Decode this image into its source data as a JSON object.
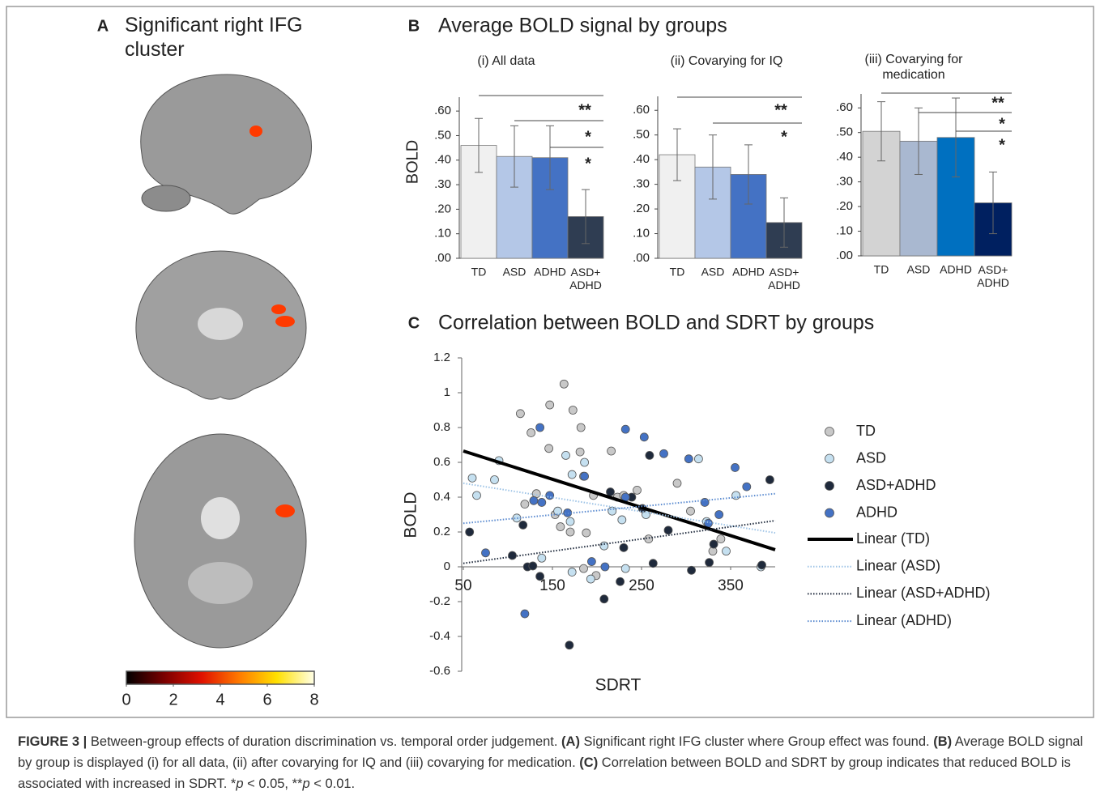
{
  "panels": {
    "A": {
      "label": "A",
      "title": "Significant right IFG cluster"
    },
    "B": {
      "label": "B",
      "title": "Average BOLD signal by groups"
    },
    "C": {
      "label": "C",
      "title": "Correlation between BOLD and SDRT by groups"
    }
  },
  "chart_data": [
    {
      "type": "colorbar",
      "xlim": [
        0,
        8
      ],
      "xticks": [
        0,
        2,
        4,
        6,
        8
      ],
      "colors": [
        "#000000",
        "#7a0000",
        "#e01000",
        "#ff7a00",
        "#ffe000",
        "#ffffe8"
      ]
    },
    {
      "type": "bar",
      "title": "(i) All data",
      "ylabel": "BOLD",
      "categories": [
        "TD",
        "ASD",
        "ADHD",
        "ASD+ ADHD"
      ],
      "values": [
        0.46,
        0.415,
        0.41,
        0.17
      ],
      "errors": [
        0.11,
        0.125,
        0.13,
        0.11
      ],
      "colors": [
        "#f0f0f0",
        "#b4c7e7",
        "#4472c4",
        "#2f3d52"
      ],
      "ylim": [
        0,
        0.65
      ],
      "yticks": [
        {
          "value": 0,
          "label": ".00"
        },
        {
          "value": 0.1,
          "label": ".10"
        },
        {
          "value": 0.2,
          "label": ".20"
        },
        {
          "value": 0.3,
          "label": ".30"
        },
        {
          "value": 0.4,
          "label": ".40"
        },
        {
          "value": 0.5,
          "label": ".50"
        },
        {
          "value": 0.6,
          "label": ".60"
        }
      ],
      "significance": [
        "**",
        "*",
        "*"
      ]
    },
    {
      "type": "bar",
      "title": "(ii) Covarying for IQ",
      "categories": [
        "TD",
        "ASD",
        "ADHD",
        "ASD+ ADHD"
      ],
      "values": [
        0.42,
        0.37,
        0.34,
        0.145
      ],
      "errors": [
        0.105,
        0.13,
        0.12,
        0.1
      ],
      "colors": [
        "#f0f0f0",
        "#b4c7e7",
        "#4472c4",
        "#2f3d52"
      ],
      "ylim": [
        0,
        0.65
      ],
      "yticks": [
        {
          "value": 0,
          "label": ".00"
        },
        {
          "value": 0.1,
          "label": ".10"
        },
        {
          "value": 0.2,
          "label": ".20"
        },
        {
          "value": 0.3,
          "label": ".30"
        },
        {
          "value": 0.4,
          "label": ".40"
        },
        {
          "value": 0.5,
          "label": ".50"
        },
        {
          "value": 0.6,
          "label": ".60"
        }
      ],
      "significance": [
        "**",
        "*"
      ]
    },
    {
      "type": "bar",
      "title": "(iii) Covarying for medication",
      "categories": [
        "TD",
        "ASD",
        "ADHD",
        "ASD+ ADHD"
      ],
      "values": [
        0.505,
        0.465,
        0.48,
        0.215
      ],
      "errors": [
        0.12,
        0.135,
        0.16,
        0.125
      ],
      "colors": [
        "#d3d3d3",
        "#a9b8d0",
        "#0070c0",
        "#002060"
      ],
      "ylim": [
        0,
        0.65
      ],
      "yticks": [
        {
          "value": 0,
          "label": ".00"
        },
        {
          "value": 0.1,
          "label": ".10"
        },
        {
          "value": 0.2,
          "label": ".20"
        },
        {
          "value": 0.3,
          "label": ".30"
        },
        {
          "value": 0.4,
          "label": ".40"
        },
        {
          "value": 0.5,
          "label": ".50"
        },
        {
          "value": 0.6,
          "label": ".60"
        }
      ],
      "significance": [
        "**",
        "*",
        "*"
      ]
    },
    {
      "type": "scatter",
      "xlabel": "SDRT",
      "ylabel": "BOLD",
      "xlim": [
        50,
        400
      ],
      "xticks": [
        50,
        150,
        250,
        350
      ],
      "ylim": [
        -0.6,
        1.2
      ],
      "yticks": [
        -0.6,
        -0.4,
        -0.2,
        0,
        0.2,
        0.4,
        0.6,
        0.8,
        1,
        1.2
      ],
      "series": [
        {
          "name": "TD",
          "color": "#c8c8c8",
          "x": [
            114,
            126,
            146,
            147,
            163,
            173,
            182,
            181,
            216,
            132,
            119,
            153,
            159,
            170,
            188,
            196,
            223,
            230,
            245,
            258,
            290,
            305,
            339,
            330,
            185,
            199
          ],
          "values": [
            0.88,
            0.77,
            0.68,
            0.93,
            1.05,
            0.9,
            0.8,
            0.66,
            0.665,
            0.42,
            0.36,
            0.3,
            0.23,
            0.2,
            0.195,
            0.41,
            0.4,
            0.41,
            0.44,
            0.16,
            0.48,
            0.32,
            0.16,
            0.09,
            -0.01,
            -0.05
          ]
        },
        {
          "name": "ASD",
          "color": "#c5e0f0",
          "x": [
            60,
            65,
            85,
            90,
            110,
            138,
            165,
            172,
            186,
            185,
            170,
            156,
            172,
            193,
            208,
            217,
            228,
            232,
            255,
            314,
            323,
            345,
            356,
            384
          ],
          "values": [
            0.51,
            0.41,
            0.5,
            0.61,
            0.28,
            0.05,
            0.64,
            0.53,
            0.6,
            0.52,
            0.26,
            0.32,
            -0.03,
            -0.07,
            0.12,
            0.32,
            0.27,
            -0.01,
            0.3,
            0.62,
            0.26,
            0.09,
            0.41,
            0
          ]
        },
        {
          "name": "ASD+ADHD",
          "color": "#1f2a3c",
          "x": [
            57,
            105,
            117,
            122,
            128,
            136,
            169,
            208,
            215,
            226,
            230,
            239,
            251,
            259,
            263,
            280,
            306,
            326,
            331,
            385,
            394
          ],
          "values": [
            0.2,
            0.065,
            0.24,
            0,
            0.005,
            -0.055,
            -0.45,
            -0.185,
            0.43,
            -0.085,
            0.11,
            0.4,
            0.335,
            0.64,
            0.02,
            0.21,
            -0.02,
            0.025,
            0.13,
            0.01,
            0.5
          ]
        },
        {
          "name": "ADHD",
          "color": "#4472c4",
          "x": [
            75,
            119,
            129,
            136,
            138,
            147,
            167,
            186,
            194,
            209,
            232,
            232,
            253,
            275,
            303,
            321,
            337,
            325,
            355,
            368
          ],
          "values": [
            0.08,
            -0.27,
            0.38,
            0.8,
            0.37,
            0.41,
            0.31,
            0.52,
            0.03,
            0,
            0.79,
            0.4,
            0.745,
            0.65,
            0.62,
            0.37,
            0.3,
            0.25,
            0.57,
            0.46
          ]
        }
      ],
      "trendlines": [
        {
          "name": "Linear (TD)",
          "color": "#000000",
          "dash": "solid",
          "x": [
            50,
            400
          ],
          "values": [
            0.665,
            0.098
          ]
        },
        {
          "name": "Linear (ASD)",
          "color": "#9dc3e6",
          "dash": "dotted",
          "x": [
            50,
            400
          ],
          "values": [
            0.48,
            0.195
          ]
        },
        {
          "name": "Linear (ASD+ADHD)",
          "color": "#1f2a3c",
          "dash": "dotted",
          "x": [
            50,
            400
          ],
          "values": [
            0.02,
            0.265
          ]
        },
        {
          "name": "Linear (ADHD)",
          "color": "#5b8bd0",
          "dash": "dotted",
          "x": [
            50,
            400
          ],
          "values": [
            0.25,
            0.42
          ]
        }
      ]
    }
  ],
  "caption": [
    {
      "text": "FIGURE 3 |",
      "style": "bold"
    },
    {
      "text": " Between-group effects of duration discrimination vs. temporal order judgement. ",
      "style": "normal"
    },
    {
      "text": "(A)",
      "style": "bold"
    },
    {
      "text": " Significant right IFG cluster where Group effect was found. ",
      "style": "normal"
    },
    {
      "text": "(B)",
      "style": "bold"
    },
    {
      "text": " Average BOLD signal by group is displayed (i) for all data, (ii) after covarying for IQ and (iii) covarying for medication. ",
      "style": "normal"
    },
    {
      "text": "(C)",
      "style": "bold"
    },
    {
      "text": " Correlation between BOLD and SDRT by group indicates that reduced BOLD is associated with increased in SDRT. *",
      "style": "normal"
    },
    {
      "text": "p",
      "style": "italic"
    },
    {
      "text": " < 0.05, **",
      "style": "normal"
    },
    {
      "text": "p",
      "style": "italic"
    },
    {
      "text": " < 0.01.",
      "style": "normal"
    }
  ]
}
